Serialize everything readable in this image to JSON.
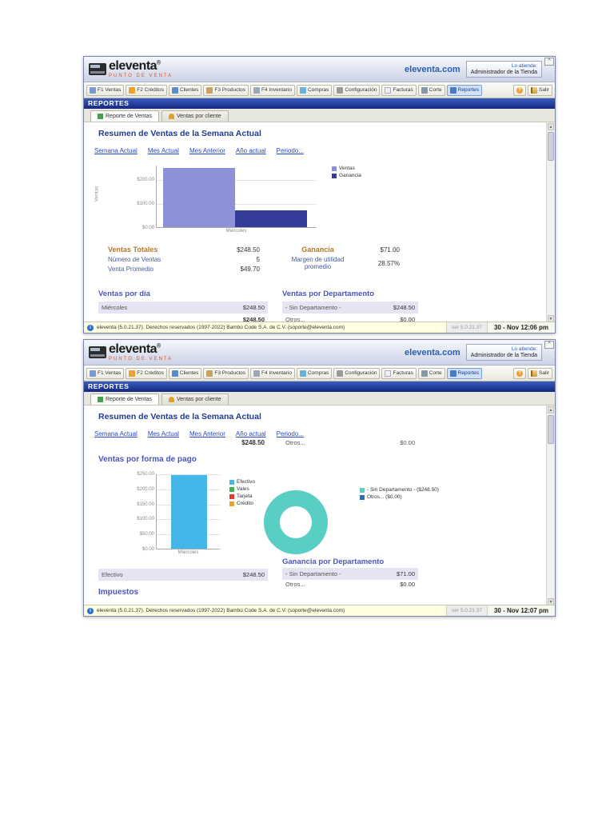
{
  "app": {
    "brand": "eleventa",
    "brand_reg": "®",
    "brand_sub": "PUNTO DE VENTA",
    "site_link": "eleventa.com",
    "attendant_label": "Lo atiende:",
    "attendant_name": "Administrador de la Tienda",
    "collapse_glyph": "^",
    "status_info_glyph": "i",
    "scroll_up_glyph": "▲",
    "scroll_down_glyph": "▼"
  },
  "toolbar": {
    "buttons": [
      "F1 Ventas",
      "F2 Créditos",
      "Clientes",
      "F3 Productos",
      "F4 Inventario",
      "Compras",
      "Configuración",
      "Facturas",
      "Corte",
      "Reportes"
    ],
    "help": "?",
    "exit": "Salir"
  },
  "banner_title": "REPORTES",
  "tabs": [
    "Reporte de Ventas",
    "Ventas por cliente"
  ],
  "report_title": "Resumen de Ventas de la Semana Actual",
  "period_links": [
    "Semana Actual",
    "Mes Actual",
    "Mes Anterior",
    "Año actual",
    "Periodo..."
  ],
  "chart_data": [
    {
      "type": "bar",
      "title": "",
      "categories": [
        "Miércoles"
      ],
      "series": [
        {
          "name": "Ventas",
          "values": [
            248.5
          ],
          "color": "#8d91d8"
        },
        {
          "name": "Ganancia",
          "values": [
            71.0
          ],
          "color": "#353b99"
        }
      ],
      "ylabel": "Ventas",
      "yticks": [
        "$200.00",
        "$100.00",
        "$0.00"
      ],
      "ylim": [
        0,
        260
      ],
      "legend_position": "right",
      "grid": true
    },
    {
      "type": "bar",
      "title": "Ventas por forma de pago",
      "categories": [
        "Miércoles"
      ],
      "series": [
        {
          "name": "Efectivo",
          "values": [
            248.5
          ],
          "color": "#45b6e8"
        },
        {
          "name": "Vales",
          "values": [
            0
          ],
          "color": "#3cb54a"
        },
        {
          "name": "Tarjeta",
          "values": [
            0
          ],
          "color": "#e03c31"
        },
        {
          "name": "Crédito",
          "values": [
            0
          ],
          "color": "#f0a030"
        }
      ],
      "yticks": [
        "$250.00",
        "$200.00",
        "$150.00",
        "$100.00",
        "$50.00",
        "$0.00"
      ],
      "ylim": [
        0,
        250
      ],
      "legend_position": "right",
      "grid": true
    },
    {
      "type": "pie",
      "title": "Ventas por Departamento",
      "donut": true,
      "slices": [
        {
          "label": "- Sin Departamento - ($248.50)",
          "value": 248.5,
          "color": "#59cfc3"
        },
        {
          "label": "Otros... ($0.00)",
          "value": 0,
          "color": "#2f6fad"
        }
      ]
    }
  ],
  "win1": {
    "summary": {
      "ventas_totales_label": "Ventas Totales",
      "ventas_totales_value": "$248.50",
      "num_ventas_label": "Número de Ventas",
      "num_ventas_value": "5",
      "venta_promedio_label": "Venta Promedio",
      "venta_promedio_value": "$49.70",
      "ganancia_label": "Ganancia",
      "ganancia_value": "$71.00",
      "margen_label": "Margen de utilidad promedio",
      "margen_value": "28.57%"
    },
    "ventas_dia": {
      "title": "Ventas por día",
      "row_label": "Miércoles",
      "row_value": "$248.50",
      "total_value": "$248.50"
    },
    "ventas_depto": {
      "title": "Ventas por Departamento",
      "rows": [
        {
          "label": "- Sin Departamento -",
          "value": "$248.50"
        },
        {
          "label": "Otros...",
          "value": "$0.00"
        }
      ]
    },
    "status": {
      "text": "eleventa (5.0.21.37). Derechos reservados (1997-2022) Bambú Code S.A. de C.V. (soporte@eleventa.com)",
      "version": "ver 5.0.21.37",
      "datetime": "30 - Nov  12:06 pm"
    }
  },
  "win2": {
    "carry": {
      "total_value": "$248.50",
      "row_label": "Otros...",
      "row_value": "$0.00"
    },
    "forma_pago": {
      "title": "Ventas por forma de pago",
      "row_label": "Efectivo",
      "row_value": "$248.50"
    },
    "impuestos_title": "Impuestos",
    "ganancia_depto": {
      "title": "Ganancia por Departamento",
      "rows": [
        {
          "label": "- Sin Departamento -",
          "value": "$71.00"
        },
        {
          "label": "Otros...",
          "value": "$0.00"
        }
      ]
    },
    "status": {
      "text": "eleventa (5.0.21.37). Derechos reservados (1997-2022) Bambú Code S.A. de C.V. (soporte@eleventa.com)",
      "version": "ver 5.0.21.37",
      "datetime": "30 - Nov  12:07 pm"
    }
  }
}
